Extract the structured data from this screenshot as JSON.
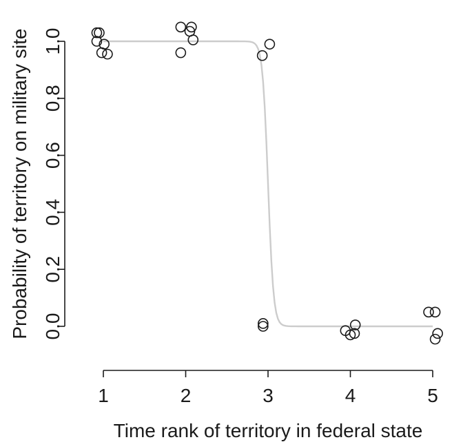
{
  "chart_data": {
    "type": "scatter",
    "xlabel": "Time rank of territory in federal state",
    "ylabel": "Probability of territory on military site",
    "xlim": [
      1,
      5
    ],
    "ylim": [
      0,
      1
    ],
    "x_ticks": [
      "1",
      "2",
      "3",
      "4",
      "5"
    ],
    "y_ticks": [
      "0.0",
      "0.2",
      "0.4",
      "0.6",
      "0.8",
      "1.0"
    ],
    "grid": false,
    "legend": "none",
    "points": [
      {
        "x": 0.92,
        "y": 1.03
      },
      {
        "x": 0.95,
        "y": 1.03
      },
      {
        "x": 0.92,
        "y": 1.0
      },
      {
        "x": 1.01,
        "y": 0.99
      },
      {
        "x": 0.98,
        "y": 0.96
      },
      {
        "x": 1.05,
        "y": 0.955
      },
      {
        "x": 1.94,
        "y": 1.05
      },
      {
        "x": 2.07,
        "y": 1.05
      },
      {
        "x": 2.05,
        "y": 1.035
      },
      {
        "x": 2.09,
        "y": 1.005
      },
      {
        "x": 1.94,
        "y": 0.96
      },
      {
        "x": 3.02,
        "y": 0.99
      },
      {
        "x": 2.93,
        "y": 0.95
      },
      {
        "x": 2.94,
        "y": 0.01
      },
      {
        "x": 2.94,
        "y": 0.0
      },
      {
        "x": 4.06,
        "y": 0.005
      },
      {
        "x": 3.94,
        "y": -0.015
      },
      {
        "x": 4.05,
        "y": -0.025
      },
      {
        "x": 4.0,
        "y": -0.03
      },
      {
        "x": 4.95,
        "y": 0.05
      },
      {
        "x": 5.03,
        "y": 0.05
      },
      {
        "x": 5.06,
        "y": -0.025
      },
      {
        "x": 5.03,
        "y": -0.045
      }
    ],
    "fitted_curve": {
      "type": "logistic",
      "midpoint": 3.0,
      "slope": 30,
      "x_range": [
        1,
        5
      ],
      "color": "#cccccc"
    },
    "point_color": "#1a1a1a"
  }
}
